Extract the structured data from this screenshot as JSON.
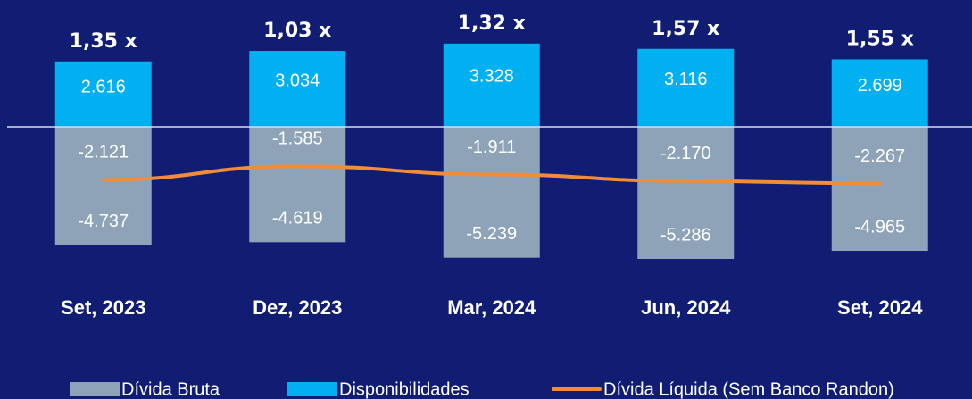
{
  "chart_data": {
    "type": "bar",
    "categories": [
      "Set, 2023",
      "Dez, 2023",
      "Mar, 2024",
      "Jun, 2024",
      "Set, 2024"
    ],
    "annotations": [
      "1,35 x",
      "1,03 x",
      "1,32 x",
      "1,57 x",
      "1,55 x"
    ],
    "series": [
      {
        "name": "Dívida Bruta",
        "type": "bar",
        "color": "#8ea3b8",
        "values": [
          -4737,
          -4619,
          -5239,
          -5286,
          -4965
        ],
        "value_labels": [
          "-4.737",
          "-4.619",
          "-5.239",
          "-5.286",
          "-4.965"
        ]
      },
      {
        "name": "Disponibilidades",
        "type": "bar",
        "color": "#00b0f0",
        "values": [
          2616,
          3034,
          3328,
          3116,
          2699
        ],
        "value_labels": [
          "2.616",
          "3.034",
          "3.328",
          "3.116",
          "2.699"
        ]
      },
      {
        "name": "Dívida Líquida (Sem Banco Randon)",
        "type": "line",
        "color": "#f28c38",
        "values": [
          -2121,
          -1585,
          -1911,
          -2170,
          -2267
        ],
        "value_labels": [
          "-2.121",
          "-1.585",
          "-1.911",
          "-2.170",
          "-2.267"
        ]
      }
    ],
    "ylim": [
      -6000,
      4000
    ]
  }
}
